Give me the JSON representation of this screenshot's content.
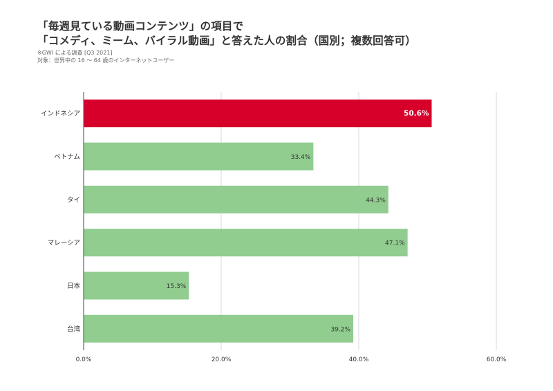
{
  "header": {
    "title_line1": "「毎週見ている動画コンテンツ」の項目で",
    "title_line2": "「コメディ、ミーム、バイラル動画」と答えた人の割合（国別；複数回答可）",
    "source_note": "※GWI による調査 [Q3 2021]",
    "target_note": "対象：世界中の 16 〜 64 歳のインターネットユーザー"
  },
  "colors": {
    "highlight": "#d7002a",
    "default_bar": "#90cd8f",
    "grid": "#d9d9d9",
    "axis": "#666666"
  },
  "chart_data": {
    "type": "bar",
    "orientation": "horizontal",
    "categories": [
      "インドネシア",
      "ベトナム",
      "タイ",
      "マレーシア",
      "日本",
      "台湾"
    ],
    "values": [
      50.6,
      33.4,
      44.3,
      47.1,
      15.3,
      39.2
    ],
    "value_labels": [
      "50.6%",
      "33.4%",
      "44.3%",
      "47.1%",
      "15.3%",
      "39.2%"
    ],
    "highlight_index": 0,
    "xlim": [
      0,
      60
    ],
    "x_ticks": [
      0,
      20,
      40,
      60
    ],
    "x_tick_labels": [
      "0.0%",
      "20.0%",
      "40.0%",
      "60.0%"
    ],
    "grid": true,
    "xlabel": "",
    "ylabel": ""
  }
}
